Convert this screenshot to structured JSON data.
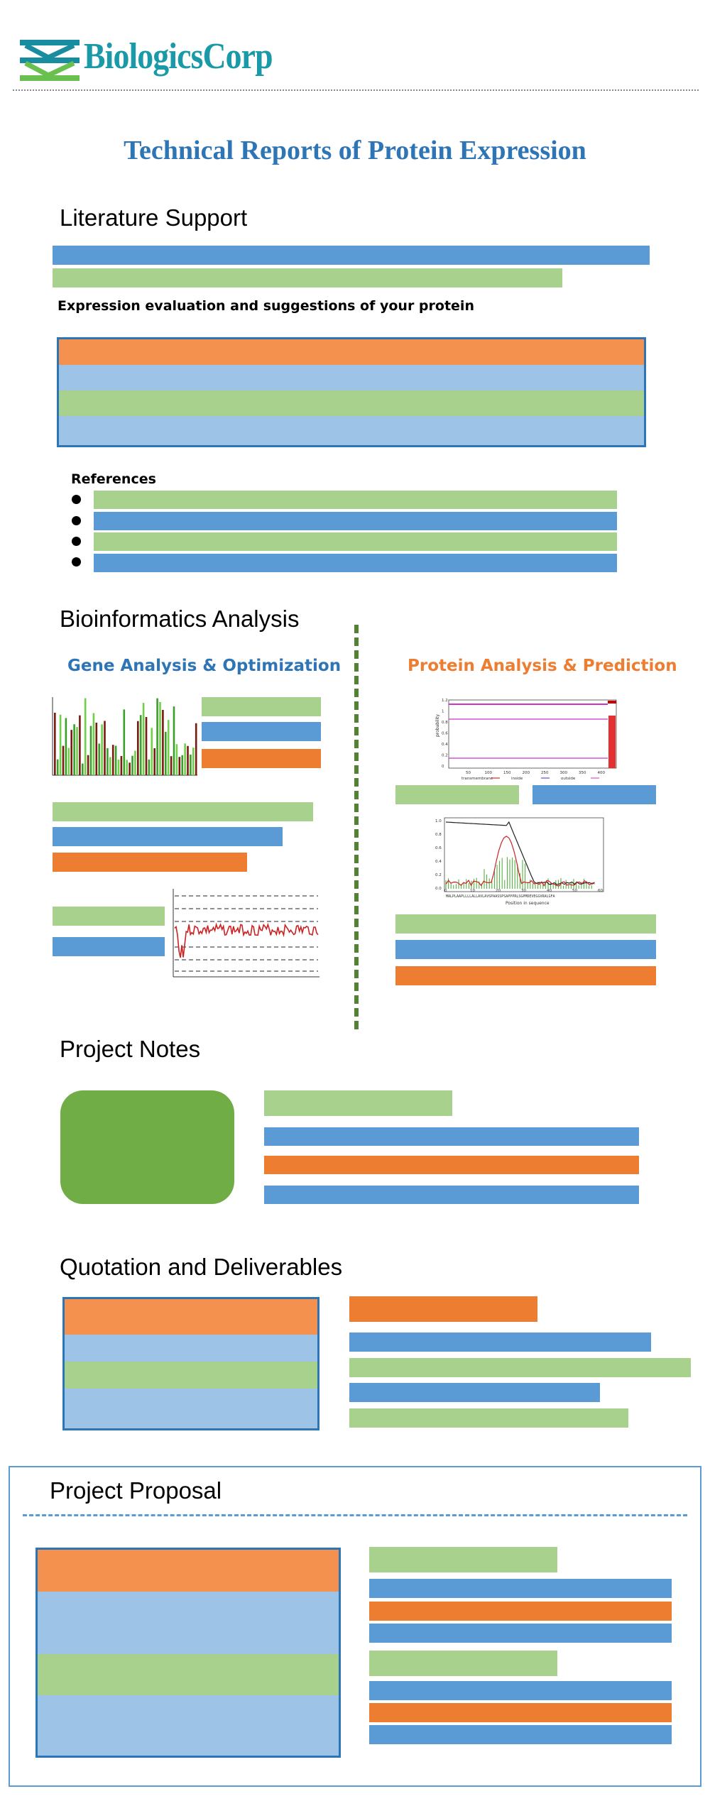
{
  "brand": {
    "logo_text": "BiologicsCorp",
    "logo_colors": [
      "#1a8ca0",
      "#6ac04f"
    ]
  },
  "page_title": "Technical Reports of Protein Expression",
  "sections": {
    "literature": {
      "heading": "Literature Support",
      "eval_label": "Expression evaluation and suggestions of your protein",
      "references_label": "References"
    },
    "bioinformatics": {
      "heading": "Bioinformatics Analysis",
      "gene_heading": "Gene Analysis & Optimization",
      "protein_heading": "Protein Analysis & Prediction",
      "chart_prob_legend": [
        "transmembrane",
        "inside",
        "outside"
      ],
      "chart_prob_ylabel": "probability",
      "chart_prob_yticks": [
        "1.2",
        "1",
        "0.8",
        "0.6",
        "0.4",
        "0.2",
        "0"
      ],
      "chart_prob_xticks": [
        "50",
        "100",
        "150",
        "200",
        "250",
        "300",
        "350",
        "400"
      ],
      "chart_signal_xlabel": "Position in sequence",
      "chart_signal_seq": "MALPLAAPLLLLALLAVLAVSPAASSPSAPPPRLSGPMDEVEGGVRALGFA",
      "chart_signal_yticks": [
        "1.0",
        "0.8",
        "0.6",
        "0.4",
        "0.2",
        "0.0"
      ],
      "chart_signal_xticks": [
        "0",
        "10",
        "20",
        "30",
        "40",
        "50",
        "60"
      ]
    },
    "notes": {
      "heading": "Project Notes"
    },
    "quotation": {
      "heading": "Quotation and Deliverables"
    },
    "proposal": {
      "heading": "Project Proposal"
    }
  },
  "colors": {
    "title_blue": "#2e75b6",
    "accent_orange": "#ed7d31",
    "divider_green": "#548235",
    "blue": "#5b9bd5",
    "green": "#a9d18e",
    "orange": "#ed7d31",
    "notes_green": "#70ad47"
  }
}
